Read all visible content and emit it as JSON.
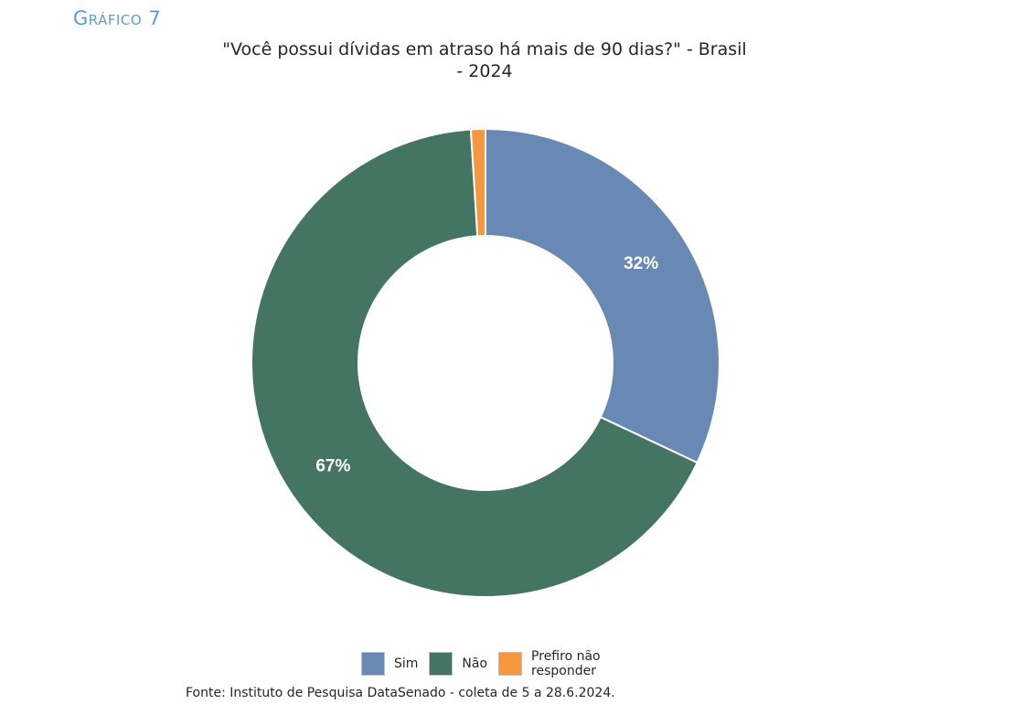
{
  "figure_label": "Gráfico 7",
  "source": "Fonte: Instituto de Pesquisa DataSenado - coleta de 5 a 28.6.2024.",
  "chart_data": {
    "type": "pie",
    "donut": true,
    "title_lines": [
      "\"Você possui dívidas em atraso há mais de 90 dias?\" - Brasil",
      "- 2024"
    ],
    "legend_position": "bottom",
    "slices": [
      {
        "name": "Sim",
        "value": 32,
        "label": "32%",
        "color": "#6789b3"
      },
      {
        "name": "Não",
        "value": 67,
        "label": "67%",
        "color": "#447462"
      },
      {
        "name": "Prefiro não responder",
        "value": 1,
        "label": "",
        "color": "#f6963f"
      }
    ]
  }
}
